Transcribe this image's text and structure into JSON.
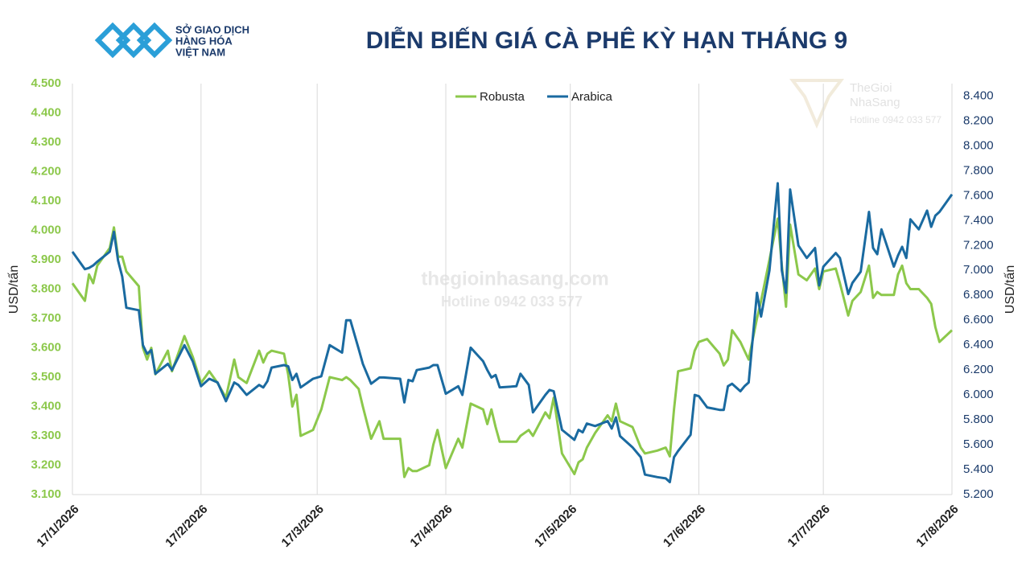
{
  "logo": {
    "lines": [
      "SỞ GIAO DỊCH",
      "HÀNG HÓA",
      "VIỆT NAM"
    ]
  },
  "watermark": {
    "site": "thegioinhasang.com",
    "hotline": "Hotline 0942 033 577",
    "brand": [
      "TheGioi",
      "NhaSang"
    ],
    "brand_hotline": "Hotline 0942 033 577"
  },
  "chart_data": {
    "type": "line",
    "title": "DIỄN BIẾN GIÁ CÀ PHÊ KỲ HẠN THÁNG 9",
    "y_label": "USD/tấn",
    "y2_label": "USD/tấn",
    "legend": "top",
    "grid": true,
    "x": [
      "2026-01-17",
      "2026-01-20",
      "2026-01-21",
      "2026-01-22",
      "2026-01-23",
      "2026-01-26",
      "2026-01-27",
      "2026-01-28",
      "2026-01-29",
      "2026-01-30",
      "2026-02-02",
      "2026-02-03",
      "2026-02-04",
      "2026-02-05",
      "2026-02-06",
      "2026-02-09",
      "2026-02-10",
      "2026-02-13",
      "2026-02-15",
      "2026-02-17",
      "2026-02-19",
      "2026-02-21",
      "2026-02-23",
      "2026-02-25",
      "2026-02-26",
      "2026-02-28",
      "2026-03-03",
      "2026-03-04",
      "2026-03-05",
      "2026-03-06",
      "2026-03-09",
      "2026-03-10",
      "2026-03-11",
      "2026-03-12",
      "2026-03-13",
      "2026-03-16",
      "2026-03-18",
      "2026-03-20",
      "2026-03-23",
      "2026-03-24",
      "2026-03-25",
      "2026-03-27",
      "2026-03-28",
      "2026-03-30",
      "2026-04-01",
      "2026-04-02",
      "2026-04-06",
      "2026-04-07",
      "2026-04-08",
      "2026-04-09",
      "2026-04-10",
      "2026-04-13",
      "2026-04-14",
      "2026-04-15",
      "2026-04-17",
      "2026-04-20",
      "2026-04-21",
      "2026-04-23",
      "2026-04-26",
      "2026-04-27",
      "2026-04-28",
      "2026-04-29",
      "2026-04-30",
      "2026-05-04",
      "2026-05-05",
      "2026-05-07",
      "2026-05-08",
      "2026-05-11",
      "2026-05-12",
      "2026-05-13",
      "2026-05-15",
      "2026-05-18",
      "2026-05-19",
      "2026-05-20",
      "2026-05-21",
      "2026-05-23",
      "2026-05-26",
      "2026-05-27",
      "2026-05-28",
      "2026-05-29",
      "2026-06-01",
      "2026-06-03",
      "2026-06-04",
      "2026-06-07",
      "2026-06-09",
      "2026-06-10",
      "2026-06-11",
      "2026-06-12",
      "2026-06-15",
      "2026-06-16",
      "2026-06-17",
      "2026-06-19",
      "2026-06-22",
      "2026-06-23",
      "2026-06-24",
      "2026-06-25",
      "2026-06-27",
      "2026-06-28",
      "2026-06-29",
      "2026-07-01",
      "2026-07-02",
      "2026-07-04",
      "2026-07-06",
      "2026-07-07",
      "2026-07-08",
      "2026-07-09",
      "2026-07-11",
      "2026-07-13",
      "2026-07-15",
      "2026-07-16",
      "2026-07-17",
      "2026-07-20",
      "2026-07-21",
      "2026-07-23",
      "2026-07-24",
      "2026-07-26",
      "2026-07-28",
      "2026-07-29",
      "2026-07-30",
      "2026-07-31",
      "2026-08-03",
      "2026-08-04",
      "2026-08-05",
      "2026-08-06",
      "2026-08-07",
      "2026-08-09",
      "2026-08-11",
      "2026-08-12",
      "2026-08-13",
      "2026-08-14",
      "2026-08-17"
    ],
    "series": [
      {
        "name": "Robusta",
        "color": "#8cc84b",
        "values": [
          3820,
          3760,
          3850,
          3820,
          3880,
          3940,
          4010,
          3910,
          3910,
          3860,
          3810,
          3600,
          3560,
          3600,
          3510,
          3590,
          3520,
          3640,
          3570,
          3480,
          3520,
          3480,
          3430,
          3560,
          3500,
          3480,
          3590,
          3550,
          3580,
          3590,
          3580,
          3510,
          3400,
          3440,
          3300,
          3320,
          3390,
          3500,
          3490,
          3500,
          3490,
          3460,
          3400,
          3290,
          3350,
          3290,
          3290,
          3160,
          3190,
          3180,
          3180,
          3200,
          3270,
          3320,
          3190,
          3290,
          3260,
          3410,
          3390,
          3340,
          3390,
          3330,
          3280,
          3280,
          3300,
          3320,
          3300,
          3380,
          3360,
          3430,
          3240,
          3170,
          3210,
          3220,
          3260,
          3310,
          3370,
          3350,
          3410,
          3350,
          3330,
          3260,
          3240,
          3250,
          3260,
          3230,
          3390,
          3520,
          3530,
          3590,
          3620,
          3630,
          3580,
          3540,
          3560,
          3660,
          3620,
          3590,
          3560,
          3700,
          3760,
          3900,
          4040,
          3880,
          3740,
          4020,
          3850,
          3830,
          3870,
          3800,
          3860,
          3870,
          3820,
          3710,
          3760,
          3790,
          3880,
          3770,
          3790,
          3780,
          3780,
          3850,
          3880,
          3820,
          3800,
          3800,
          3770,
          3750,
          3670,
          3620,
          3660
        ]
      },
      {
        "name": "Arabica",
        "color": "#1a6aa0",
        "axis": "y2",
        "values": [
          7150,
          7010,
          7020,
          7040,
          7070,
          7150,
          7310,
          7080,
          6950,
          6700,
          6680,
          6400,
          6330,
          6360,
          6170,
          6250,
          6200,
          6400,
          6270,
          6070,
          6130,
          6100,
          5950,
          6100,
          6080,
          6000,
          6080,
          6060,
          6110,
          6220,
          6240,
          6230,
          6120,
          6170,
          6060,
          6130,
          6150,
          6400,
          6340,
          6600,
          6600,
          6370,
          6250,
          6090,
          6140,
          6140,
          6130,
          5940,
          6120,
          6110,
          6200,
          6220,
          6240,
          6240,
          6010,
          6070,
          6000,
          6380,
          6270,
          6200,
          6140,
          6160,
          6060,
          6070,
          6170,
          6080,
          5860,
          6000,
          6040,
          6030,
          5720,
          5640,
          5720,
          5700,
          5770,
          5750,
          5790,
          5730,
          5820,
          5670,
          5580,
          5500,
          5360,
          5340,
          5330,
          5300,
          5500,
          5550,
          5680,
          6000,
          5990,
          5900,
          5880,
          5880,
          6070,
          6090,
          6030,
          6070,
          6100,
          6820,
          6630,
          7000,
          7700,
          7000,
          6820,
          7650,
          7200,
          7100,
          7180,
          6880,
          7030,
          7140,
          7100,
          6810,
          6900,
          6990,
          7470,
          7180,
          7130,
          7330,
          7030,
          7120,
          7190,
          7100,
          7410,
          7330,
          7480,
          7350,
          7440,
          7470,
          7610
        ]
      }
    ],
    "xlim": [
      "2026-01-17",
      "2026-08-17"
    ],
    "xticks": [
      {
        "value": "2026-01-17",
        "label": "17/1/2026"
      },
      {
        "value": "2026-02-17",
        "label": "17/2/2026"
      },
      {
        "value": "2026-03-17",
        "label": "17/3/2026"
      },
      {
        "value": "2026-04-17",
        "label": "17/4/2026"
      },
      {
        "value": "2026-05-17",
        "label": "17/5/2026"
      },
      {
        "value": "2026-06-17",
        "label": "17/6/2026"
      },
      {
        "value": "2026-07-17",
        "label": "17/7/2026"
      },
      {
        "value": "2026-08-17",
        "label": "17/8/2026"
      }
    ],
    "ylim": [
      3100,
      4500
    ],
    "yticks": [
      {
        "value": 3100,
        "label": "3.100"
      },
      {
        "value": 3200,
        "label": "3.200"
      },
      {
        "value": 3300,
        "label": "3.300"
      },
      {
        "value": 3400,
        "label": "3.400"
      },
      {
        "value": 3500,
        "label": "3.500"
      },
      {
        "value": 3600,
        "label": "3.600"
      },
      {
        "value": 3700,
        "label": "3.700"
      },
      {
        "value": 3800,
        "label": "3.800"
      },
      {
        "value": 3900,
        "label": "3.900"
      },
      {
        "value": 4000,
        "label": "4.000"
      },
      {
        "value": 4100,
        "label": "4.100"
      },
      {
        "value": 4200,
        "label": "4.200"
      },
      {
        "value": 4300,
        "label": "4.300"
      },
      {
        "value": 4400,
        "label": "4.400"
      },
      {
        "value": 4500,
        "label": "4.500"
      }
    ],
    "y2lim": [
      5200,
      8500
    ],
    "y2ticks": [
      {
        "value": 5200,
        "label": "5.200"
      },
      {
        "value": 5400,
        "label": "5.400"
      },
      {
        "value": 5600,
        "label": "5.600"
      },
      {
        "value": 5800,
        "label": "5.800"
      },
      {
        "value": 6000,
        "label": "6.000"
      },
      {
        "value": 6200,
        "label": "6.200"
      },
      {
        "value": 6400,
        "label": "6.400"
      },
      {
        "value": 6600,
        "label": "6.600"
      },
      {
        "value": 6800,
        "label": "6.800"
      },
      {
        "value": 7000,
        "label": "7.000"
      },
      {
        "value": 7200,
        "label": "7.200"
      },
      {
        "value": 7400,
        "label": "7.400"
      },
      {
        "value": 7600,
        "label": "7.600"
      },
      {
        "value": 7800,
        "label": "7.800"
      },
      {
        "value": 8000,
        "label": "8.000"
      },
      {
        "value": 8200,
        "label": "8.200"
      },
      {
        "value": 8400,
        "label": "8.400"
      }
    ]
  }
}
